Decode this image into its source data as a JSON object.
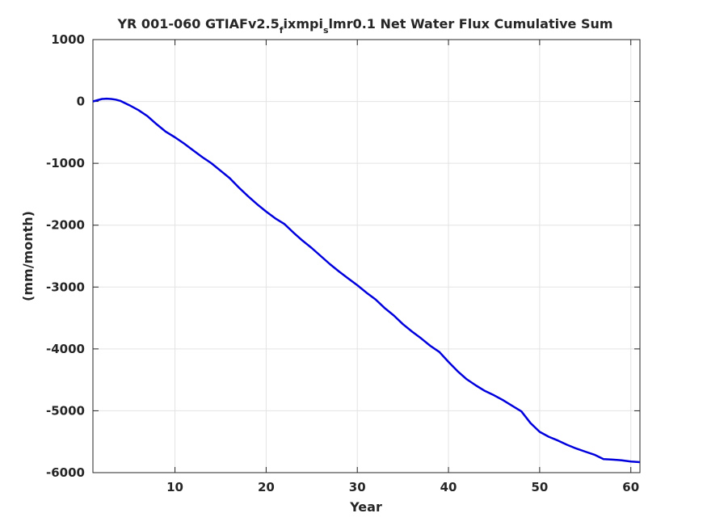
{
  "chart_data": {
    "type": "line",
    "title_parts": [
      "YR 001-060 GTIAFv2.5",
      "f",
      "ixmpi",
      "s",
      "lmr0.1 Net Water Flux Cumulative Sum"
    ],
    "xlabel": "Year",
    "ylabel": "(mm/month)",
    "xlim": [
      1,
      61
    ],
    "ylim": [
      -6000,
      1000
    ],
    "xticks": [
      10,
      20,
      30,
      40,
      50,
      60
    ],
    "yticks": [
      1000,
      0,
      -1000,
      -2000,
      -3000,
      -4000,
      -5000,
      -6000
    ],
    "grid": true,
    "line_color": "#0000dd",
    "series": [
      {
        "x": [
          1,
          1.5,
          2,
          2.5,
          3,
          3.5,
          4,
          5,
          6,
          7,
          8,
          9,
          10,
          11,
          12,
          13,
          14,
          15,
          16,
          17,
          18,
          19,
          20,
          21,
          22,
          23,
          24,
          25,
          26,
          27,
          28,
          29,
          30,
          31,
          32,
          33,
          34,
          35,
          36,
          37,
          38,
          39,
          40,
          41,
          42,
          43,
          44,
          45,
          46,
          47,
          48,
          49,
          50,
          51,
          52,
          53,
          54,
          55,
          56,
          57,
          58,
          59,
          60,
          61
        ],
        "values": [
          0,
          20,
          40,
          45,
          40,
          30,
          10,
          -60,
          -140,
          -240,
          -370,
          -490,
          -580,
          -680,
          -790,
          -900,
          -1000,
          -1120,
          -1240,
          -1390,
          -1530,
          -1660,
          -1780,
          -1890,
          -1980,
          -2120,
          -2250,
          -2370,
          -2500,
          -2630,
          -2750,
          -2860,
          -2970,
          -3090,
          -3200,
          -3340,
          -3460,
          -3600,
          -3720,
          -3830,
          -3950,
          -4050,
          -4210,
          -4360,
          -4490,
          -4590,
          -4680,
          -4750,
          -4830,
          -4920,
          -5010,
          -5200,
          -5340,
          -5420,
          -5480,
          -5550,
          -5610,
          -5660,
          -5710,
          -5780,
          -5790,
          -5800,
          -5820,
          -5830
        ]
      }
    ]
  }
}
